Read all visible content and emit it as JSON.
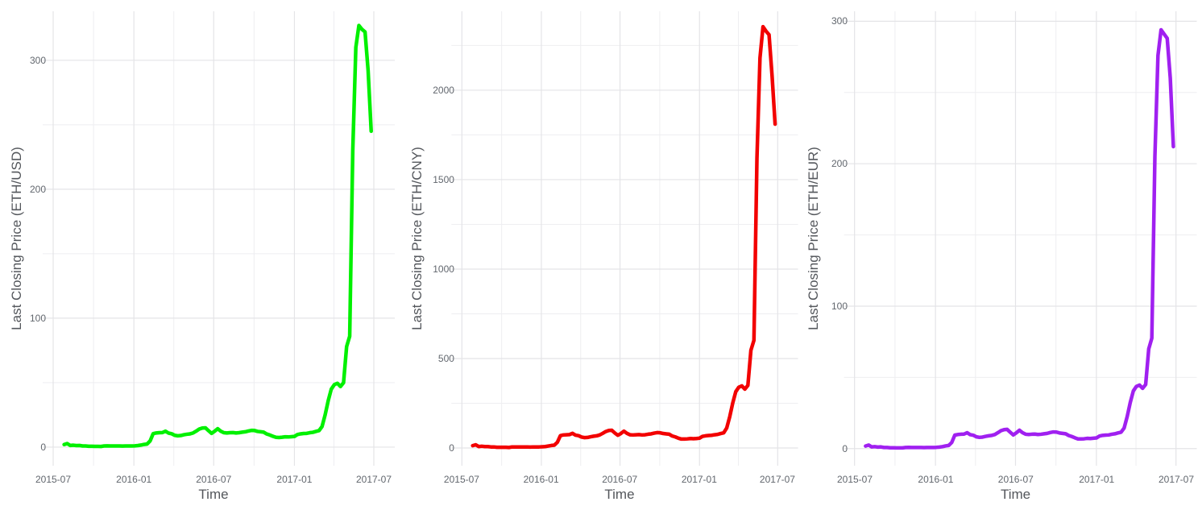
{
  "figure": {
    "background": "#ffffff",
    "grid": {
      "major_color": "#e4e4e7",
      "minor_color": "#eeeef1",
      "grid_on": true
    },
    "text": {
      "tick_color": "#61666d",
      "title_color": "#54575c"
    },
    "legend": "none"
  },
  "chart_data": [
    {
      "type": "line",
      "title": "",
      "xlabel": "Time",
      "ylabel": "Last Closing Price (ETH/USD)",
      "line_color": "#00f000",
      "x_ticks": [
        "2015-07",
        "2016-01",
        "2016-07",
        "2017-01",
        "2017-07"
      ],
      "x_minor_ticks": [
        "2015-10",
        "2016-04",
        "2016-10",
        "2017-04"
      ],
      "y_ticks": [
        0,
        100,
        200,
        300
      ],
      "y_minor_ticks": [
        50,
        150,
        250
      ],
      "ylim": [
        -14.4,
        338
      ],
      "x_start": "2015-07-26",
      "interval_days": 7,
      "values": [
        2.0,
        2.8,
        1.3,
        1.5,
        1.2,
        1.3,
        0.9,
        0.9,
        0.7,
        0.7,
        0.6,
        0.6,
        0.5,
        0.9,
        1.0,
        0.9,
        0.9,
        0.9,
        0.9,
        0.8,
        0.9,
        0.9,
        0.9,
        1.0,
        1.2,
        1.6,
        2.1,
        2.4,
        4.8,
        10.5,
        11.0,
        11.2,
        11.3,
        12.4,
        10.9,
        10.4,
        9.2,
        8.8,
        9.0,
        9.6,
        10.0,
        10.3,
        11.0,
        12.4,
        14.0,
        14.8,
        15.0,
        12.8,
        10.7,
        12.3,
        14.3,
        12.4,
        11.2,
        11.0,
        11.2,
        11.3,
        11.0,
        11.2,
        11.6,
        11.9,
        12.5,
        13.0,
        12.9,
        12.2,
        11.9,
        11.6,
        10.2,
        9.4,
        8.4,
        7.6,
        7.5,
        7.7,
        8.0,
        7.9,
        8.1,
        8.3,
        9.8,
        10.3,
        10.6,
        10.7,
        11.2,
        11.5,
        12.2,
        12.8,
        16,
        25,
        36,
        45,
        48.5,
        49.5,
        47,
        50,
        78,
        86,
        230,
        310,
        327,
        324,
        322,
        292,
        245
      ]
    },
    {
      "type": "line",
      "title": "",
      "xlabel": "Time",
      "ylabel": "Last Closing Price (ETH/CNY)",
      "line_color": "#f20000",
      "x_ticks": [
        "2015-07",
        "2016-01",
        "2016-07",
        "2017-01",
        "2017-07"
      ],
      "x_minor_ticks": [
        "2015-10",
        "2016-04",
        "2016-10",
        "2017-04"
      ],
      "y_ticks": [
        0,
        500,
        1000,
        1500,
        2000
      ],
      "y_minor_ticks": [
        250,
        750,
        1250,
        1750,
        2250
      ],
      "ylim": [
        -99,
        2441
      ],
      "x_start": "2015-07-26",
      "interval_days": 7,
      "values": [
        13,
        18,
        8,
        10,
        8,
        8,
        6,
        6,
        4,
        4,
        4,
        4,
        3,
        6,
        6,
        6,
        6,
        6,
        6,
        5,
        6,
        6,
        6,
        7,
        8,
        11,
        14,
        16,
        32,
        69,
        73,
        74,
        75,
        82,
        72,
        69,
        61,
        58,
        59,
        63,
        66,
        68,
        73,
        82,
        92,
        98,
        99,
        84,
        71,
        81,
        94,
        82,
        74,
        73,
        74,
        75,
        73,
        74,
        77,
        79,
        83,
        86,
        85,
        81,
        79,
        77,
        67,
        62,
        55,
        50,
        50,
        51,
        53,
        52,
        53,
        55,
        65,
        68,
        70,
        71,
        74,
        76,
        81,
        85,
        112,
        175,
        252,
        315,
        340,
        347,
        329,
        350,
        546,
        602,
        1620,
        2180,
        2355,
        2330,
        2310,
        2080,
        1810
      ]
    },
    {
      "type": "line",
      "title": "",
      "xlabel": "Time",
      "ylabel": "Last Closing Price (ETH/EUR)",
      "line_color": "#a020f0",
      "x_ticks": [
        "2015-07",
        "2016-01",
        "2016-07",
        "2017-01",
        "2017-07"
      ],
      "x_minor_ticks": [
        "2015-10",
        "2016-04",
        "2016-10",
        "2017-04"
      ],
      "y_ticks": [
        0,
        100,
        200,
        300
      ],
      "y_minor_ticks": [
        50,
        150,
        250
      ],
      "ylim": [
        -12,
        307
      ],
      "x_start": "2015-07-26",
      "interval_days": 7,
      "values": [
        1.8,
        2.5,
        1.2,
        1.4,
        1.1,
        1.2,
        0.8,
        0.8,
        0.6,
        0.6,
        0.5,
        0.5,
        0.5,
        0.8,
        0.9,
        0.8,
        0.8,
        0.8,
        0.8,
        0.7,
        0.8,
        0.8,
        0.8,
        0.9,
        1.1,
        1.4,
        1.9,
        2.2,
        4.3,
        9.5,
        9.9,
        10.1,
        10.2,
        11.2,
        9.8,
        9.4,
        8.3,
        7.9,
        8.1,
        8.6,
        9.0,
        9.3,
        9.9,
        11.2,
        12.6,
        13.3,
        13.5,
        11.5,
        9.6,
        11.1,
        12.9,
        11.2,
        10.1,
        9.9,
        10.1,
        10.2,
        9.9,
        10.1,
        10.4,
        10.7,
        11.3,
        11.7,
        11.6,
        11.0,
        10.7,
        10.4,
        9.2,
        8.5,
        7.6,
        6.8,
        6.8,
        6.9,
        7.2,
        7.1,
        7.3,
        7.5,
        8.8,
        9.3,
        9.5,
        9.6,
        10.1,
        10.4,
        11.0,
        11.5,
        14.4,
        22.5,
        32.4,
        40.5,
        43.7,
        44.6,
        42.3,
        45.0,
        70.0,
        77.5,
        205,
        276,
        294,
        291,
        288,
        260,
        212
      ]
    }
  ]
}
